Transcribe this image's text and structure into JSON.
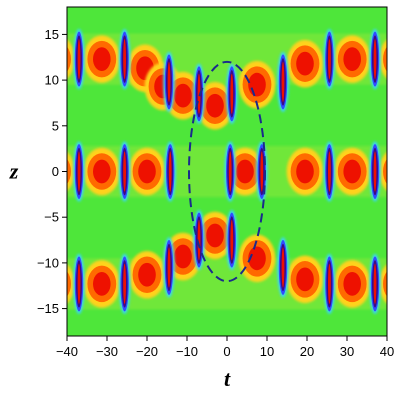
{
  "chart_data": {
    "type": "heatmap",
    "title": "",
    "xlabel": "t",
    "ylabel": "z",
    "xlim": [
      -40,
      40
    ],
    "ylim": [
      -18,
      18
    ],
    "x_ticks": [
      -40,
      -30,
      -20,
      -10,
      0,
      10,
      20,
      30,
      40
    ],
    "y_ticks": [
      -15,
      -10,
      -5,
      0,
      5,
      10,
      15
    ],
    "x_tick_labels": [
      "−40",
      "−30",
      "−20",
      "−10",
      "0",
      "10",
      "20",
      "30",
      "40"
    ],
    "y_tick_labels": [
      "−15",
      "−10",
      "−5",
      "0",
      "5",
      "10",
      "15"
    ],
    "colormap": [
      "#3a0a8a",
      "#2f4cff",
      "#3ad6f2",
      "#39e639",
      "#ffd21a",
      "#ff6a00",
      "#ee1100"
    ],
    "background_color": "#4ee63a",
    "period_t": 11.4,
    "row_centers_z": [
      12.3,
      0,
      -12.3
    ],
    "tubes": [
      {
        "t": -37,
        "z": 12.3
      },
      {
        "t": -25.6,
        "z": 12.3
      },
      {
        "t": 25.6,
        "z": 12.3
      },
      {
        "t": 37,
        "z": 12.3
      },
      {
        "t": 14,
        "z": 9.8
      },
      {
        "t": -14.5,
        "z": 9.8
      },
      {
        "t": -7,
        "z": 8.5
      },
      {
        "t": 1.2,
        "z": 8.5
      },
      {
        "t": -37,
        "z": 0
      },
      {
        "t": -25.6,
        "z": 0
      },
      {
        "t": -14.2,
        "z": 0
      },
      {
        "t": 0.8,
        "z": 0
      },
      {
        "t": 8.7,
        "z": 0
      },
      {
        "t": 25.6,
        "z": 0
      },
      {
        "t": 37,
        "z": 0
      },
      {
        "t": -7,
        "z": -7.5
      },
      {
        "t": 1.2,
        "z": -7.5
      },
      {
        "t": -14.5,
        "z": -10.5
      },
      {
        "t": 14,
        "z": -10.5
      },
      {
        "t": -37,
        "z": -12.3
      },
      {
        "t": -25.6,
        "z": -12.3
      },
      {
        "t": 25.6,
        "z": -12.3
      },
      {
        "t": 37,
        "z": -12.3
      }
    ],
    "blobs": [
      {
        "t": -42.6,
        "z": 12.3
      },
      {
        "t": -31.3,
        "z": 12.3
      },
      {
        "t": -20.5,
        "z": 11.3
      },
      {
        "t": -16,
        "z": 9.3
      },
      {
        "t": -11,
        "z": 8.3
      },
      {
        "t": -3,
        "z": 7.2
      },
      {
        "t": 7.5,
        "z": 9.5
      },
      {
        "t": 19.5,
        "z": 11.8
      },
      {
        "t": 31.3,
        "z": 12.3
      },
      {
        "t": 42.6,
        "z": 12.3
      },
      {
        "t": -42.6,
        "z": 0
      },
      {
        "t": -31.3,
        "z": 0
      },
      {
        "t": -20,
        "z": 0
      },
      {
        "t": 4.5,
        "z": 0
      },
      {
        "t": 19.5,
        "z": 0
      },
      {
        "t": 31.3,
        "z": 0
      },
      {
        "t": 42.6,
        "z": 0
      },
      {
        "t": -3,
        "z": -7
      },
      {
        "t": -11,
        "z": -9.3
      },
      {
        "t": -20,
        "z": -11.3
      },
      {
        "t": 7.5,
        "z": -9.5
      },
      {
        "t": 19.5,
        "z": -11.8
      },
      {
        "t": 31.3,
        "z": -12.3
      },
      {
        "t": 42.6,
        "z": -12.3
      },
      {
        "t": -42.6,
        "z": -12.3
      },
      {
        "t": -31.3,
        "z": -12.3
      }
    ],
    "annotation": {
      "shape": "dashed-ellipse",
      "center_t": 0,
      "center_z": 0,
      "radius_t": 9.5,
      "radius_z": 12,
      "color": "#1a2a8c"
    }
  }
}
